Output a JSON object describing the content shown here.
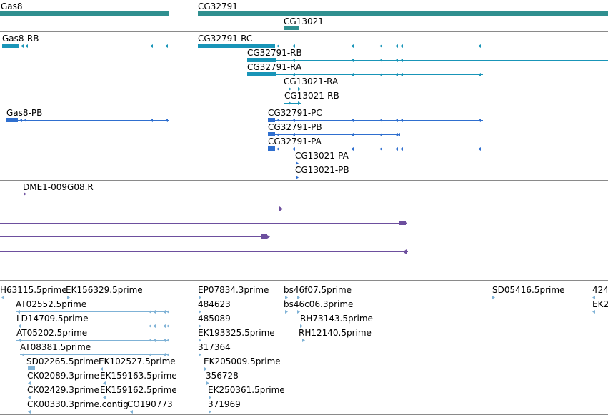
{
  "colors": {
    "gene": "#2f8f8f",
    "mrna": "#1995b8",
    "protein": "#2f6fcf",
    "clone": "#6d4f9e",
    "est": "#7fb2d6",
    "separator": "#8a8a8a",
    "text": "#000000"
  },
  "genes": {
    "gas8": "Gas8",
    "cg32791": "CG32791",
    "cg13021": "CG13021"
  },
  "mrnas": {
    "gas8_rb": "Gas8-RB",
    "cg32791_rc": "CG32791-RC",
    "cg32791_rb": "CG32791-RB",
    "cg32791_ra": "CG32791-RA",
    "cg13021_ra": "CG13021-RA",
    "cg13021_rb": "CG13021-RB"
  },
  "proteins": {
    "gas8_pb": "Gas8-PB",
    "cg32791_pc": "CG32791-PC",
    "cg32791_pb": "CG32791-PB",
    "cg32791_pa": "CG32791-PA",
    "cg13021_pa": "CG13021-PA",
    "cg13021_pb": "CG13021-PB"
  },
  "clones": {
    "dme1": "DME1-009G08.R"
  },
  "ests": {
    "h63115": "H63115.5prime",
    "ek156329": "EK156329.5prime",
    "ep07834": "EP07834.3prime",
    "bs46f07": "bs46f07.5prime",
    "sd05416": "SD05416.5prime",
    "e424": "424",
    "at02552": "AT02552.5prime",
    "e484623": "484623",
    "bs46c06": "bs46c06.3prime",
    "ek2": "EK2",
    "ld14709": "LD14709.5prime",
    "e485089": "485089",
    "rh73143": "RH73143.5prime",
    "at05202": "AT05202.5prime",
    "ek193325": "EK193325.5prime",
    "rh12140": "RH12140.5prime",
    "at08381": "AT08381.5prime",
    "e317364": "317364",
    "sd02265": "SD02265.5prime",
    "ek102527": "EK102527.5prime",
    "ek205009": "EK205009.5prime",
    "ck02089": "CK02089.3prime",
    "ek159163": "EK159163.5prime",
    "e356728": "356728",
    "ck02429": "CK02429.3prime",
    "ek159162": "EK159162.5prime",
    "ek250361": "EK250361.5prime",
    "ck00330": "CK00330.3prime.contig",
    "co190773": "CO190773",
    "e371969": "371969"
  }
}
